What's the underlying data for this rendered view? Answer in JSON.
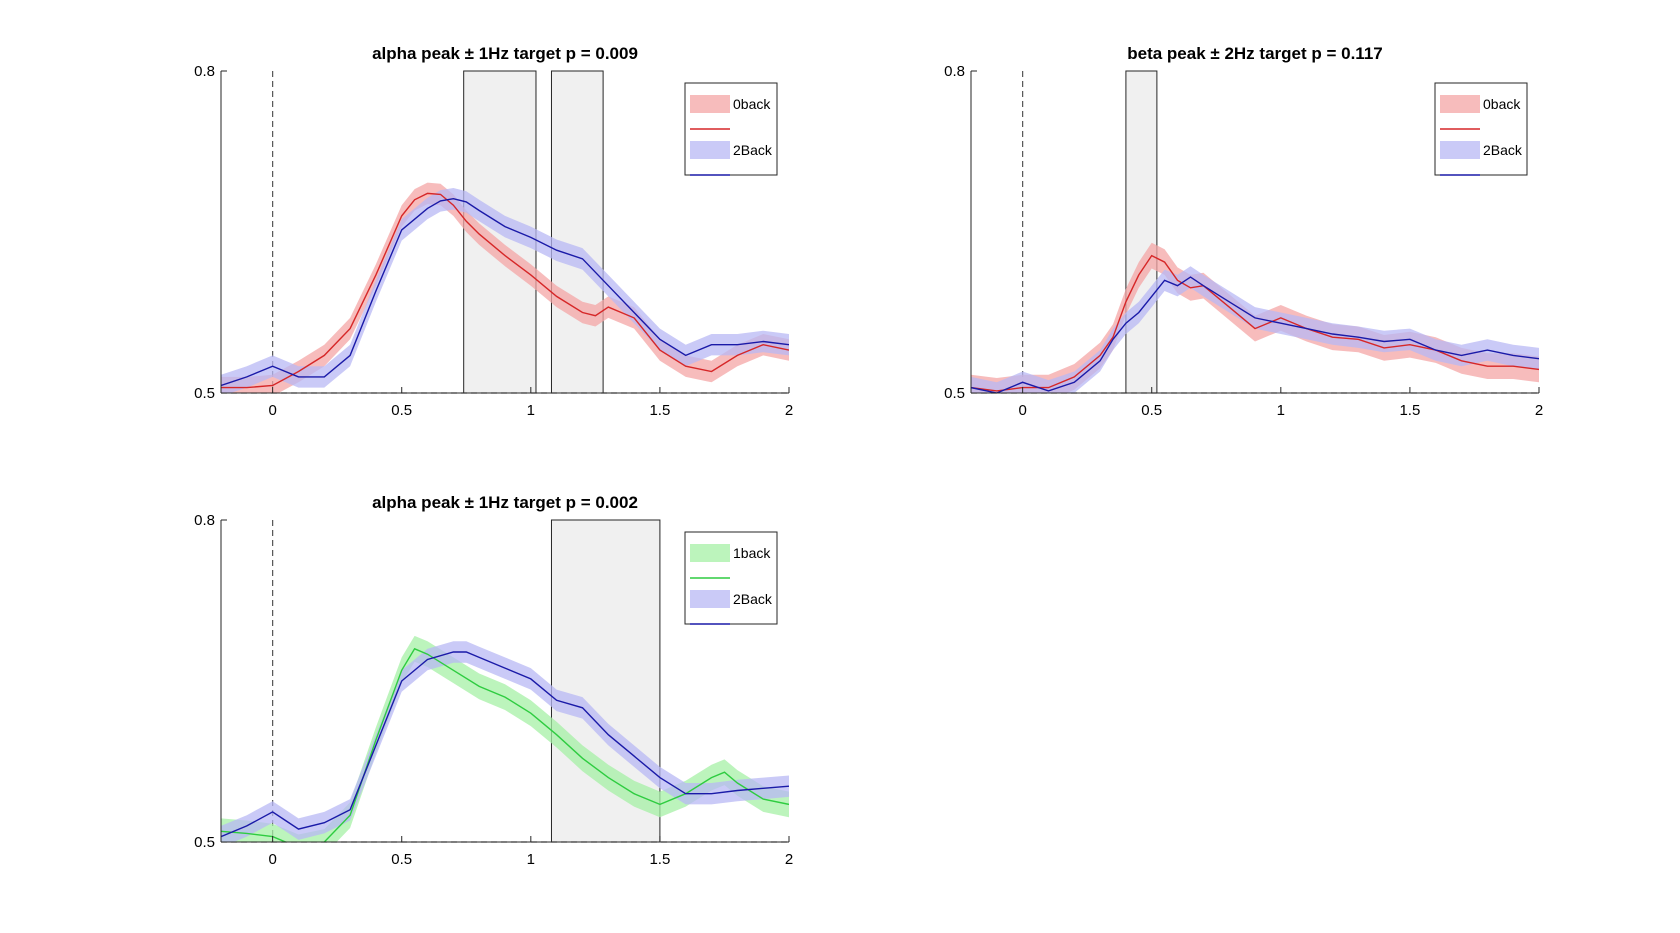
{
  "chart_data": [
    {
      "type": "line",
      "title": "alpha peak ± 1Hz target p = 0.009",
      "xlim": [
        -0.2,
        2.0
      ],
      "ylim": [
        0.5,
        0.8
      ],
      "xticks": [
        "0",
        "0.5",
        "1",
        "1.5",
        "2"
      ],
      "xtick_values": [
        0,
        0.5,
        1,
        1.5,
        2
      ],
      "yticks": [
        "0.5",
        "0.8"
      ],
      "ytick_values": [
        0.5,
        0.8
      ],
      "grid": false,
      "legend": "top-right",
      "vline_at": 0,
      "significance_windows": [
        [
          0.74,
          1.02
        ],
        [
          1.08,
          1.28
        ]
      ],
      "series": [
        {
          "name": "0back",
          "color": "#d62728",
          "band_color": "#f4a6a6",
          "x": [
            -0.2,
            -0.1,
            0.0,
            0.1,
            0.2,
            0.3,
            0.4,
            0.5,
            0.55,
            0.6,
            0.65,
            0.7,
            0.75,
            0.8,
            0.9,
            1.0,
            1.1,
            1.2,
            1.25,
            1.3,
            1.4,
            1.5,
            1.6,
            1.7,
            1.8,
            1.9,
            2.0
          ],
          "y": [
            0.505,
            0.505,
            0.507,
            0.52,
            0.535,
            0.56,
            0.61,
            0.665,
            0.68,
            0.686,
            0.685,
            0.675,
            0.66,
            0.648,
            0.628,
            0.61,
            0.59,
            0.575,
            0.572,
            0.58,
            0.57,
            0.54,
            0.525,
            0.52,
            0.535,
            0.545,
            0.54
          ],
          "ci": 0.01
        },
        {
          "name": "2Back",
          "color": "#1a1aa8",
          "band_color": "#b8b8f4",
          "x": [
            -0.2,
            -0.1,
            0.0,
            0.1,
            0.2,
            0.3,
            0.4,
            0.5,
            0.6,
            0.65,
            0.7,
            0.75,
            0.8,
            0.9,
            1.0,
            1.1,
            1.2,
            1.3,
            1.4,
            1.5,
            1.6,
            1.7,
            1.8,
            1.9,
            2.0
          ],
          "y": [
            0.507,
            0.515,
            0.525,
            0.515,
            0.515,
            0.535,
            0.595,
            0.652,
            0.672,
            0.679,
            0.681,
            0.678,
            0.67,
            0.655,
            0.645,
            0.633,
            0.625,
            0.6,
            0.575,
            0.55,
            0.535,
            0.545,
            0.545,
            0.548,
            0.545
          ],
          "ci": 0.01
        }
      ]
    },
    {
      "type": "line",
      "title": "beta peak ± 2Hz target p = 0.117",
      "xlim": [
        -0.2,
        2.0
      ],
      "ylim": [
        0.5,
        0.8
      ],
      "xticks": [
        "0",
        "0.5",
        "1",
        "1.5",
        "2"
      ],
      "xtick_values": [
        0,
        0.5,
        1,
        1.5,
        2
      ],
      "yticks": [
        "0.5",
        "0.8"
      ],
      "ytick_values": [
        0.5,
        0.8
      ],
      "grid": false,
      "legend": "top-right",
      "vline_at": 0,
      "significance_windows": [
        [
          0.4,
          0.52
        ]
      ],
      "series": [
        {
          "name": "0back",
          "color": "#d62728",
          "band_color": "#f4a6a6",
          "x": [
            -0.2,
            -0.1,
            0.0,
            0.1,
            0.2,
            0.3,
            0.35,
            0.4,
            0.45,
            0.5,
            0.55,
            0.6,
            0.65,
            0.7,
            0.8,
            0.9,
            1.0,
            1.1,
            1.2,
            1.3,
            1.4,
            1.5,
            1.6,
            1.7,
            1.8,
            1.9,
            2.0
          ],
          "y": [
            0.505,
            0.502,
            0.505,
            0.505,
            0.515,
            0.535,
            0.552,
            0.585,
            0.61,
            0.628,
            0.622,
            0.605,
            0.598,
            0.6,
            0.58,
            0.56,
            0.57,
            0.56,
            0.552,
            0.55,
            0.542,
            0.545,
            0.54,
            0.53,
            0.525,
            0.525,
            0.522
          ],
          "ci": 0.012
        },
        {
          "name": "2Back",
          "color": "#1a1aa8",
          "band_color": "#b8b8f4",
          "x": [
            -0.2,
            -0.1,
            0.0,
            0.1,
            0.2,
            0.3,
            0.35,
            0.4,
            0.45,
            0.5,
            0.55,
            0.6,
            0.65,
            0.7,
            0.8,
            0.9,
            1.0,
            1.1,
            1.2,
            1.3,
            1.4,
            1.5,
            1.6,
            1.7,
            1.8,
            1.9,
            2.0
          ],
          "y": [
            0.505,
            0.5,
            0.51,
            0.502,
            0.51,
            0.53,
            0.55,
            0.565,
            0.575,
            0.59,
            0.605,
            0.6,
            0.608,
            0.6,
            0.585,
            0.57,
            0.565,
            0.56,
            0.555,
            0.552,
            0.548,
            0.55,
            0.54,
            0.535,
            0.54,
            0.535,
            0.532
          ],
          "ci": 0.01
        }
      ]
    },
    {
      "type": "line",
      "title": "alpha peak ± 1Hz target p = 0.002",
      "xlim": [
        -0.2,
        2.0
      ],
      "ylim": [
        0.5,
        0.8
      ],
      "xticks": [
        "0",
        "0.5",
        "1",
        "1.5",
        "2"
      ],
      "xtick_values": [
        0,
        0.5,
        1,
        1.5,
        2
      ],
      "yticks": [
        "0.5",
        "0.8"
      ],
      "ytick_values": [
        0.5,
        0.8
      ],
      "grid": false,
      "legend": "top-right",
      "vline_at": 0,
      "significance_windows": [
        [
          1.08,
          1.5
        ]
      ],
      "series": [
        {
          "name": "1back",
          "color": "#2ecc40",
          "band_color": "#a6f0a6",
          "x": [
            -0.2,
            -0.1,
            0.0,
            0.1,
            0.2,
            0.3,
            0.4,
            0.5,
            0.55,
            0.6,
            0.7,
            0.8,
            0.9,
            1.0,
            1.1,
            1.2,
            1.3,
            1.4,
            1.5,
            1.6,
            1.7,
            1.75,
            1.8,
            1.9,
            2.0
          ],
          "y": [
            0.51,
            0.508,
            0.505,
            0.495,
            0.5,
            0.525,
            0.595,
            0.66,
            0.68,
            0.675,
            0.66,
            0.645,
            0.635,
            0.62,
            0.6,
            0.578,
            0.56,
            0.545,
            0.535,
            0.545,
            0.56,
            0.565,
            0.555,
            0.54,
            0.535
          ],
          "ci": 0.012
        },
        {
          "name": "2Back",
          "color": "#1a1aa8",
          "band_color": "#b8b8f4",
          "x": [
            -0.2,
            -0.1,
            0.0,
            0.05,
            0.1,
            0.2,
            0.3,
            0.4,
            0.5,
            0.6,
            0.7,
            0.75,
            0.8,
            0.9,
            1.0,
            1.1,
            1.2,
            1.3,
            1.4,
            1.5,
            1.6,
            1.7,
            1.8,
            1.9,
            2.0
          ],
          "y": [
            0.505,
            0.515,
            0.528,
            0.52,
            0.512,
            0.518,
            0.53,
            0.59,
            0.65,
            0.67,
            0.677,
            0.677,
            0.672,
            0.662,
            0.652,
            0.632,
            0.625,
            0.6,
            0.58,
            0.56,
            0.545,
            0.545,
            0.548,
            0.55,
            0.552
          ],
          "ci": 0.01
        }
      ]
    }
  ]
}
